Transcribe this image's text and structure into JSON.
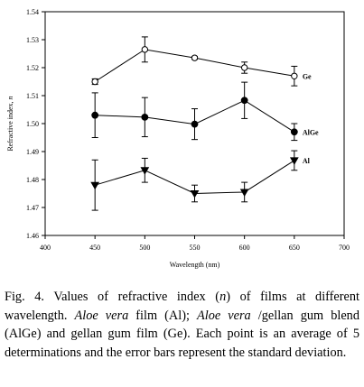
{
  "chart_data": {
    "type": "line",
    "title": "",
    "xlabel": "Wavelength (nm)",
    "ylabel": "Refractive index, n",
    "xlim": [
      400,
      700
    ],
    "ylim": [
      1.46,
      1.54
    ],
    "x_ticks": [
      "400",
      "450",
      "500",
      "550",
      "600",
      "650",
      "700"
    ],
    "y_ticks": [
      "1.46",
      "1.47",
      "1.48",
      "1.49",
      "1.50",
      "1.51",
      "1.52",
      "1.53",
      "1.54"
    ],
    "grid": false,
    "legend": "inline labels at right end of each series",
    "x": [
      450,
      500,
      550,
      600,
      650
    ],
    "series": [
      {
        "name": "Ge",
        "marker": "open-circle",
        "values": [
          1.515,
          1.5265,
          1.5235,
          1.52,
          1.517
        ],
        "errors": [
          0.001,
          0.0045,
          0.0005,
          0.002,
          0.0035
        ]
      },
      {
        "name": "AlGe",
        "marker": "filled-circle",
        "values": [
          1.503,
          1.5023,
          1.4998,
          1.5083,
          1.497
        ],
        "errors": [
          0.008,
          0.007,
          0.0055,
          0.0065,
          0.003
        ]
      },
      {
        "name": "Al",
        "marker": "filled-triangle-down",
        "values": [
          1.478,
          1.4833,
          1.475,
          1.4755,
          1.4868
        ],
        "errors": [
          0.009,
          0.0043,
          0.003,
          0.0035,
          0.0035
        ]
      }
    ]
  },
  "caption": {
    "fig": "Fig. 4.",
    "t1": " Values of refractive index (",
    "n": "n",
    "t2": ") of films at different wavelength. ",
    "av1": "Aloe vera",
    "t3": " film (Al); ",
    "av2": "Aloe vera",
    "t4": " /gellan gum blend (AlGe) and gellan gum film (Ge). Each point is an average of 5 determinations and the error bars represent the standard deviation."
  }
}
